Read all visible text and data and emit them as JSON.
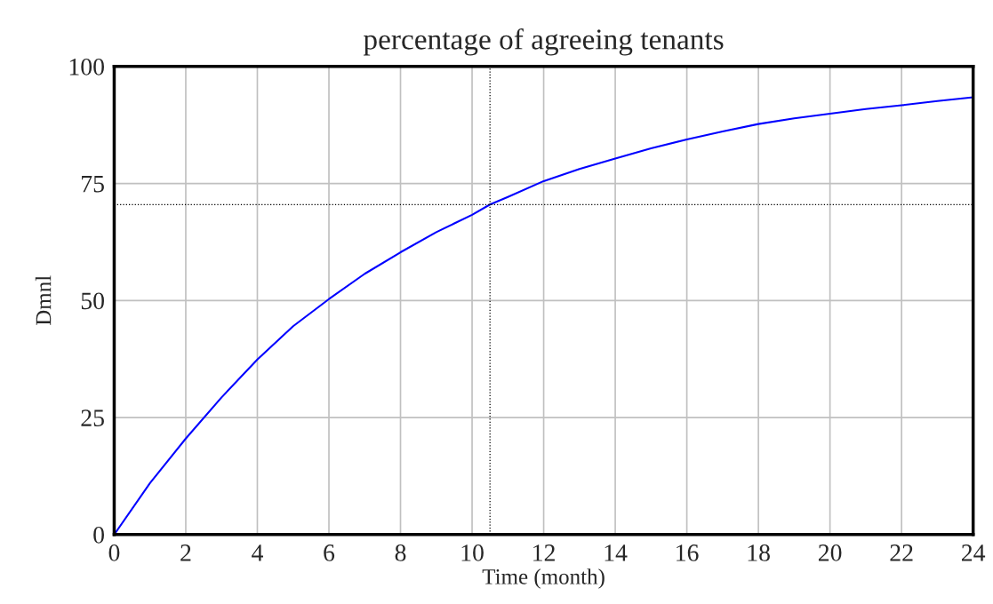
{
  "chart_data": {
    "type": "line",
    "title": "percentage of agreeing tenants",
    "xlabel": "Time (month)",
    "ylabel": "Dmnl",
    "x": [
      0,
      1,
      2,
      3,
      4,
      5,
      6,
      7,
      8,
      9,
      10,
      10.5,
      11,
      12,
      13,
      14,
      15,
      16,
      17,
      18,
      19,
      20,
      21,
      22,
      23,
      24
    ],
    "series": [
      {
        "color": "#0000ff",
        "values": [
          0,
          11,
          20.5,
          29.3,
          37.4,
          44.5,
          50.3,
          55.7,
          60.3,
          64.6,
          68.3,
          70.5,
          72.1,
          75.5,
          78.1,
          80.3,
          82.5,
          84.4,
          86.1,
          87.7,
          88.9,
          89.9,
          90.9,
          91.7,
          92.6,
          93.4
        ]
      }
    ],
    "xlim": [
      0,
      24
    ],
    "xticks": [
      0,
      2,
      4,
      6,
      8,
      10,
      12,
      14,
      16,
      18,
      20,
      22,
      24
    ],
    "ylim": [
      0,
      100
    ],
    "yticks": [
      0,
      25,
      50,
      75,
      100
    ],
    "ref_lines": [
      {
        "axis": "x",
        "value": 10.5,
        "color": "#000000",
        "line_style": "dotted"
      },
      {
        "axis": "y",
        "value": 70.5,
        "color": "#000000",
        "line_style": "dotted"
      }
    ],
    "grid": true
  }
}
